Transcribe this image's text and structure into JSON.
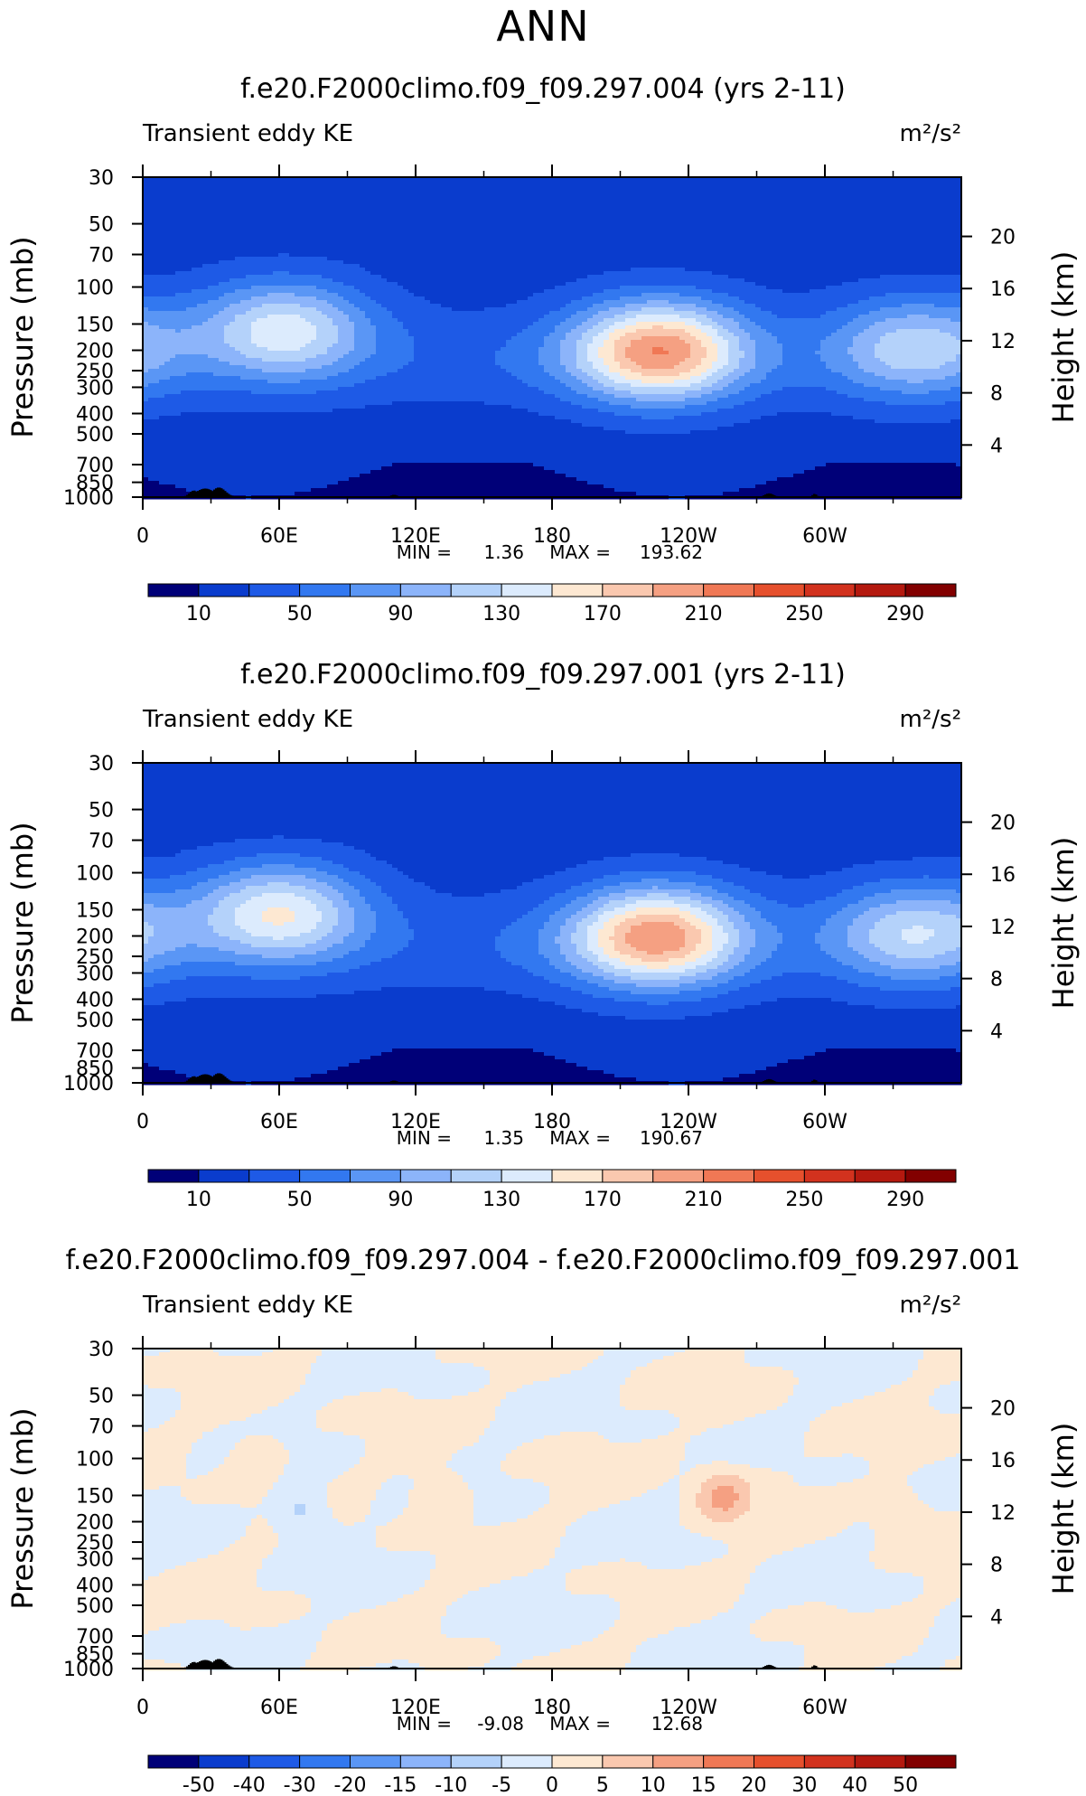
{
  "page_title": "ANN",
  "chart_data": [
    {
      "type": "heatmap",
      "title": "f.e20.F2000climo.f09_f09.297.004 (yrs 2-11)",
      "left_label": "Transient eddy KE",
      "units": "m²/s²",
      "ylabel": "Pressure (mb)",
      "ylabel_right": "Height (km)",
      "x_ticks": [
        "0",
        "60E",
        "120E",
        "180",
        "120W",
        "60W"
      ],
      "y_ticks": [
        "30",
        "50",
        "70",
        "100",
        "150",
        "200",
        "250",
        "300",
        "400",
        "500",
        "700",
        "850",
        "1000"
      ],
      "y_right_ticks": [
        "20",
        "16",
        "12",
        "8",
        "4"
      ],
      "min_label": "MIN =",
      "min_value": "1.36",
      "max_label": "MAX =",
      "max_value": "193.62",
      "levels": [
        10,
        30,
        50,
        70,
        90,
        110,
        130,
        150,
        170,
        190,
        210,
        230,
        250,
        270,
        290
      ],
      "colorbar_labels": [
        "10",
        "50",
        "90",
        "130",
        "170",
        "210",
        "250",
        "290"
      ],
      "features": [
        {
          "lon": 62,
          "p": 160,
          "peak": 140
        },
        {
          "lon": 227,
          "p": 200,
          "peak": 193.6
        },
        {
          "lon": 340,
          "p": 195,
          "peak": 120
        }
      ]
    },
    {
      "type": "heatmap",
      "title": "f.e20.F2000climo.f09_f09.297.001 (yrs 2-11)",
      "left_label": "Transient eddy KE",
      "units": "m²/s²",
      "ylabel": "Pressure (mb)",
      "ylabel_right": "Height (km)",
      "x_ticks": [
        "0",
        "60E",
        "120E",
        "180",
        "120W",
        "60W"
      ],
      "y_ticks": [
        "30",
        "50",
        "70",
        "100",
        "150",
        "200",
        "250",
        "300",
        "400",
        "500",
        "700",
        "850",
        "1000"
      ],
      "y_right_ticks": [
        "20",
        "16",
        "12",
        "8",
        "4"
      ],
      "min_label": "MIN =",
      "min_value": "1.35",
      "max_label": "MAX =",
      "max_value": "190.67",
      "levels": [
        10,
        30,
        50,
        70,
        90,
        110,
        130,
        150,
        170,
        190,
        210,
        230,
        250,
        270,
        290
      ],
      "colorbar_labels": [
        "10",
        "50",
        "90",
        "130",
        "170",
        "210",
        "250",
        "290"
      ],
      "features": [
        {
          "lon": 60,
          "p": 155,
          "peak": 150
        },
        {
          "lon": 226,
          "p": 200,
          "peak": 190.7
        },
        {
          "lon": 340,
          "p": 195,
          "peak": 125
        }
      ]
    },
    {
      "type": "heatmap",
      "title": "f.e20.F2000climo.f09_f09.297.004 - f.e20.F2000climo.f09_f09.297.001",
      "left_label": "Transient eddy KE",
      "units": "m²/s²",
      "ylabel": "Pressure (mb)",
      "ylabel_right": "Height (km)",
      "x_ticks": [
        "0",
        "60E",
        "120E",
        "180",
        "120W",
        "60W"
      ],
      "y_ticks": [
        "30",
        "50",
        "70",
        "100",
        "150",
        "200",
        "250",
        "300",
        "400",
        "500",
        "700",
        "850",
        "1000"
      ],
      "y_right_ticks": [
        "20",
        "16",
        "12",
        "8",
        "4"
      ],
      "min_label": "MIN =",
      "min_value": "-9.08",
      "max_label": "MAX =",
      "max_value": "12.68",
      "levels": [
        -50,
        -40,
        -30,
        -20,
        -15,
        -10,
        -5,
        0,
        5,
        10,
        15,
        20,
        30,
        40,
        50
      ],
      "colorbar_labels": [
        "-50",
        "-40",
        "-30",
        "-20",
        "-15",
        "-10",
        "-5",
        "0",
        "5",
        "10",
        "15",
        "20",
        "30",
        "40",
        "50"
      ],
      "features": [
        {
          "lon": 50,
          "p": 100,
          "value": 6
        },
        {
          "lon": 130,
          "p": 150,
          "value": 7
        },
        {
          "lon": 255,
          "p": 150,
          "value": 12.7
        },
        {
          "lon": 335,
          "p": 180,
          "value": 6
        },
        {
          "lon": 70,
          "p": 180,
          "value": -9.1
        }
      ]
    }
  ],
  "colors": {
    "palette": [
      "#000078",
      "#0a23a0",
      "#0a3ccd",
      "#1e5ae6",
      "#3278f0",
      "#5a96f5",
      "#8cb4fa",
      "#b4d2fa",
      "#dcebfd",
      "#fde8d2",
      "#fac8af",
      "#f5a082",
      "#f07855",
      "#e6502d",
      "#d2321e",
      "#b4190f",
      "#820000"
    ],
    "terrain": "#000000"
  }
}
